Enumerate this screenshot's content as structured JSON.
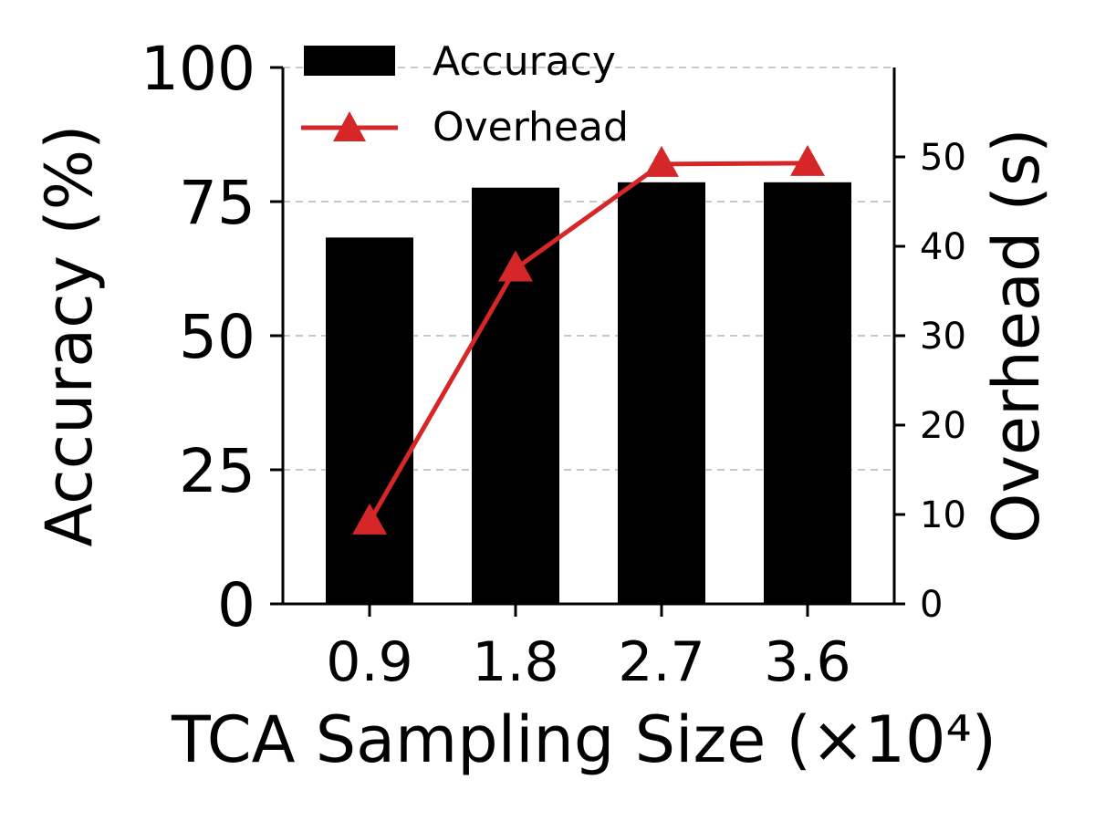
{
  "chart_data": {
    "type": "bar",
    "categories": [
      "0.9",
      "1.8",
      "2.7",
      "3.6"
    ],
    "xlabel": "TCA Sampling Size (×10⁴)",
    "ylabel_left": "Accuracy (%)",
    "ylabel_right": "Overhead (s)",
    "ylim_left": [
      0,
      100
    ],
    "ylim_right": [
      0,
      60
    ],
    "yticks_left": [
      "0",
      "25",
      "50",
      "75",
      "100"
    ],
    "yticks_right": [
      "0",
      "10",
      "20",
      "30",
      "40",
      "50"
    ],
    "grid": "horizontal dashed",
    "legend_position": "top-left",
    "series": [
      {
        "name": "Accuracy",
        "type": "bar",
        "axis": "left",
        "color": "#000000",
        "values": [
          68.3,
          77.6,
          78.6,
          78.6
        ]
      },
      {
        "name": "Overhead",
        "type": "line",
        "axis": "right",
        "marker": "triangle",
        "color": "#d62728",
        "values": [
          9.2,
          37.5,
          49.2,
          49.3
        ]
      }
    ]
  }
}
